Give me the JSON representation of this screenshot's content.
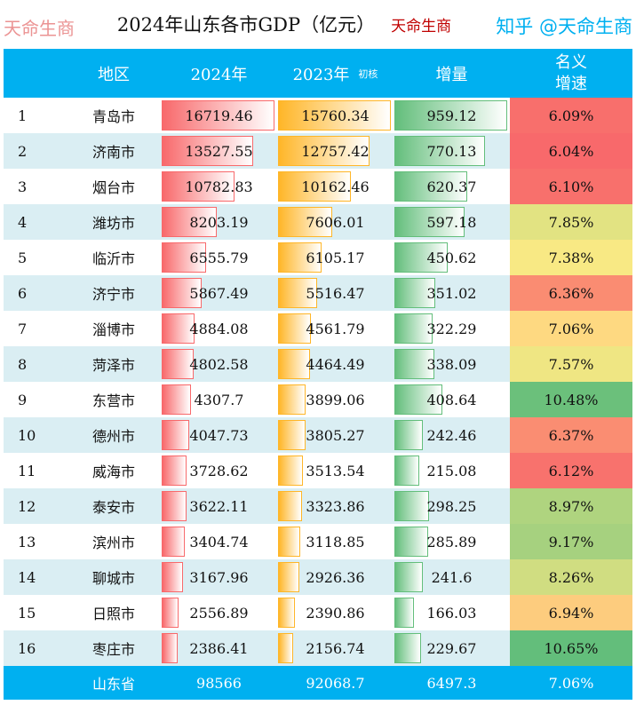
{
  "title": "2024年山东各市GDP（亿元）",
  "brand": "天命生商",
  "header": {
    "region": "地区",
    "y2024": "2024年",
    "y2023": "2023年",
    "y2023_note": "初核",
    "increase": "增量",
    "growth": "名义\n增速"
  },
  "colors": {
    "header": "#00b0f0",
    "bar2024": "#f8696b",
    "bar2023": "#ffb628",
    "barInc": "#63be7b",
    "scaleLow": "#f8696b",
    "scaleMid": "#ffeb84",
    "scaleHigh": "#63be7b",
    "stripe": "#daeef3"
  },
  "rows": [
    {
      "rank": "1",
      "city": "青岛市",
      "y2024": "16719.46",
      "y2023": "15760.34",
      "inc": "959.12",
      "growth": "6.09%"
    },
    {
      "rank": "2",
      "city": "济南市",
      "y2024": "13527.55",
      "y2023": "12757.42",
      "inc": "770.13",
      "growth": "6.04%"
    },
    {
      "rank": "3",
      "city": "烟台市",
      "y2024": "10782.83",
      "y2023": "10162.46",
      "inc": "620.37",
      "growth": "6.10%"
    },
    {
      "rank": "4",
      "city": "潍坊市",
      "y2024": "8203.19",
      "y2023": "7606.01",
      "inc": "597.18",
      "growth": "7.85%"
    },
    {
      "rank": "5",
      "city": "临沂市",
      "y2024": "6555.79",
      "y2023": "6105.17",
      "inc": "450.62",
      "growth": "7.38%"
    },
    {
      "rank": "6",
      "city": "济宁市",
      "y2024": "5867.49",
      "y2023": "5516.47",
      "inc": "351.02",
      "growth": "6.36%"
    },
    {
      "rank": "7",
      "city": "淄博市",
      "y2024": "4884.08",
      "y2023": "4561.79",
      "inc": "322.29",
      "growth": "7.06%"
    },
    {
      "rank": "8",
      "city": "菏泽市",
      "y2024": "4802.58",
      "y2023": "4464.49",
      "inc": "338.09",
      "growth": "7.57%"
    },
    {
      "rank": "9",
      "city": "东营市",
      "y2024": "4307.7",
      "y2023": "3899.06",
      "inc": "408.64",
      "growth": "10.48%"
    },
    {
      "rank": "10",
      "city": "德州市",
      "y2024": "4047.73",
      "y2023": "3805.27",
      "inc": "242.46",
      "growth": "6.37%"
    },
    {
      "rank": "11",
      "city": "威海市",
      "y2024": "3728.62",
      "y2023": "3513.54",
      "inc": "215.08",
      "growth": "6.12%"
    },
    {
      "rank": "12",
      "city": "泰安市",
      "y2024": "3622.11",
      "y2023": "3323.86",
      "inc": "298.25",
      "growth": "8.97%"
    },
    {
      "rank": "13",
      "city": "滨州市",
      "y2024": "3404.74",
      "y2023": "3118.85",
      "inc": "285.89",
      "growth": "9.17%"
    },
    {
      "rank": "14",
      "city": "聊城市",
      "y2024": "3167.96",
      "y2023": "2926.36",
      "inc": "241.6",
      "growth": "8.26%"
    },
    {
      "rank": "15",
      "city": "日照市",
      "y2024": "2556.89",
      "y2023": "2390.86",
      "inc": "166.03",
      "growth": "6.94%"
    },
    {
      "rank": "16",
      "city": "枣庄市",
      "y2024": "2386.41",
      "y2023": "2156.74",
      "inc": "229.67",
      "growth": "10.65%"
    }
  ],
  "total": {
    "city": "山东省",
    "y2024": "98566",
    "y2023": "92068.7",
    "inc": "6497.3",
    "growth": "7.06%"
  },
  "watermark": "天命生商",
  "overlay": "知乎 @天命生商"
}
